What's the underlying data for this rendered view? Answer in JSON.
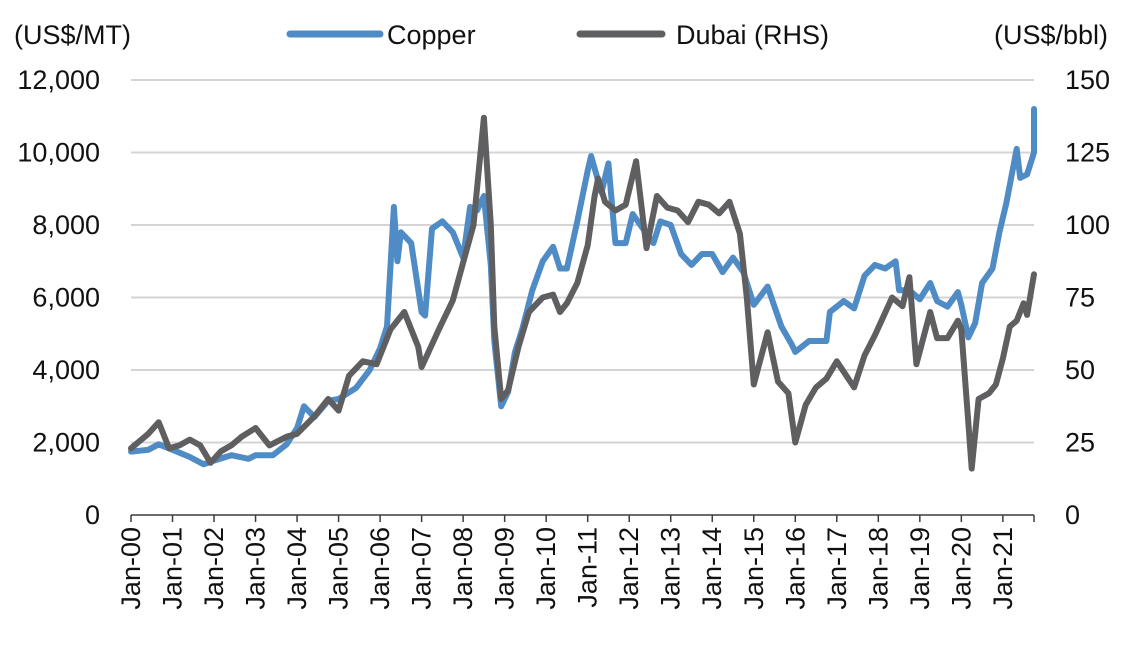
{
  "chart_data": {
    "type": "line",
    "title": "",
    "xlabel": "",
    "left_axis_unit": "(US$/MT)",
    "right_axis_unit": "(US$/bbl)",
    "left_ylim": [
      0,
      12000
    ],
    "right_ylim": [
      0,
      150
    ],
    "left_yticks": [
      "0",
      "2,000",
      "4,000",
      "6,000",
      "8,000",
      "10,000",
      "12,000"
    ],
    "right_yticks": [
      "0",
      "25",
      "50",
      "75",
      "100",
      "125",
      "150"
    ],
    "x_ticks": [
      "Jan-00",
      "Jan-01",
      "Jan-02",
      "Jan-03",
      "Jan-04",
      "Jan-05",
      "Jan-06",
      "Jan-07",
      "Jan-08",
      "Jan-09",
      "Jan-10",
      "Jan-11",
      "Jan-12",
      "Jan-13",
      "Jan-14",
      "Jan-15",
      "Jan-16",
      "Jan-17",
      "Jan-18",
      "Jan-19",
      "Jan-20",
      "Jan-21"
    ],
    "xlim": [
      "2000-01",
      "2021-10"
    ],
    "grid": "horizontal",
    "legend_position": "top-center",
    "series": [
      {
        "name": "Copper",
        "axis": "left",
        "color": "#4f8bc4",
        "points": [
          [
            "2000-01",
            1750
          ],
          [
            "2000-06",
            1800
          ],
          [
            "2000-09",
            1950
          ],
          [
            "2001-01",
            1800
          ],
          [
            "2001-06",
            1600
          ],
          [
            "2001-10",
            1400
          ],
          [
            "2002-01",
            1500
          ],
          [
            "2002-06",
            1650
          ],
          [
            "2002-11",
            1550
          ],
          [
            "2003-01",
            1650
          ],
          [
            "2003-06",
            1650
          ],
          [
            "2003-10",
            1950
          ],
          [
            "2004-01",
            2400
          ],
          [
            "2004-03",
            3000
          ],
          [
            "2004-06",
            2700
          ],
          [
            "2004-10",
            3150
          ],
          [
            "2005-01",
            3200
          ],
          [
            "2005-06",
            3500
          ],
          [
            "2005-10",
            4000
          ],
          [
            "2006-01",
            4600
          ],
          [
            "2006-03",
            5200
          ],
          [
            "2006-05",
            8500
          ],
          [
            "2006-06",
            7000
          ],
          [
            "2006-07",
            7800
          ],
          [
            "2006-10",
            7500
          ],
          [
            "2007-01",
            5600
          ],
          [
            "2007-02",
            5500
          ],
          [
            "2007-04",
            7900
          ],
          [
            "2007-07",
            8100
          ],
          [
            "2007-10",
            7800
          ],
          [
            "2008-01",
            7100
          ],
          [
            "2008-03",
            8500
          ],
          [
            "2008-05",
            8400
          ],
          [
            "2008-07",
            8800
          ],
          [
            "2008-09",
            6900
          ],
          [
            "2008-10",
            4800
          ],
          [
            "2008-12",
            3000
          ],
          [
            "2009-02",
            3400
          ],
          [
            "2009-04",
            4500
          ],
          [
            "2009-06",
            5100
          ],
          [
            "2009-09",
            6200
          ],
          [
            "2009-12",
            7000
          ],
          [
            "2010-03",
            7400
          ],
          [
            "2010-05",
            6800
          ],
          [
            "2010-07",
            6800
          ],
          [
            "2010-10",
            8100
          ],
          [
            "2011-01",
            9500
          ],
          [
            "2011-02",
            9900
          ],
          [
            "2011-05",
            8900
          ],
          [
            "2011-07",
            9700
          ],
          [
            "2011-09",
            7500
          ],
          [
            "2011-12",
            7500
          ],
          [
            "2012-02",
            8300
          ],
          [
            "2012-05",
            7900
          ],
          [
            "2012-08",
            7500
          ],
          [
            "2012-10",
            8100
          ],
          [
            "2013-01",
            8000
          ],
          [
            "2013-04",
            7200
          ],
          [
            "2013-07",
            6900
          ],
          [
            "2013-10",
            7200
          ],
          [
            "2014-01",
            7200
          ],
          [
            "2014-04",
            6700
          ],
          [
            "2014-07",
            7100
          ],
          [
            "2014-10",
            6700
          ],
          [
            "2015-01",
            5800
          ],
          [
            "2015-05",
            6300
          ],
          [
            "2015-09",
            5200
          ],
          [
            "2015-12",
            4700
          ],
          [
            "2016-01",
            4500
          ],
          [
            "2016-05",
            4800
          ],
          [
            "2016-10",
            4800
          ],
          [
            "2016-11",
            5600
          ],
          [
            "2017-03",
            5900
          ],
          [
            "2017-06",
            5700
          ],
          [
            "2017-09",
            6600
          ],
          [
            "2017-12",
            6900
          ],
          [
            "2018-03",
            6800
          ],
          [
            "2018-06",
            7000
          ],
          [
            "2018-07",
            6200
          ],
          [
            "2018-10",
            6200
          ],
          [
            "2019-01",
            5950
          ],
          [
            "2019-04",
            6400
          ],
          [
            "2019-06",
            5900
          ],
          [
            "2019-09",
            5750
          ],
          [
            "2019-12",
            6150
          ],
          [
            "2020-01",
            5800
          ],
          [
            "2020-03",
            4900
          ],
          [
            "2020-05",
            5300
          ],
          [
            "2020-07",
            6400
          ],
          [
            "2020-10",
            6800
          ],
          [
            "2020-12",
            7800
          ],
          [
            "2021-02",
            8600
          ],
          [
            "2021-05",
            10100
          ],
          [
            "2021-06",
            9300
          ],
          [
            "2021-08",
            9400
          ],
          [
            "2021-10",
            10000
          ],
          [
            "2021-10",
            11200
          ]
        ]
      },
      {
        "name": "Dubai (RHS)",
        "axis": "right",
        "color": "#5f5f61",
        "points": [
          [
            "2000-01",
            23
          ],
          [
            "2000-06",
            28
          ],
          [
            "2000-09",
            32
          ],
          [
            "2000-12",
            23
          ],
          [
            "2001-03",
            24
          ],
          [
            "2001-06",
            26
          ],
          [
            "2001-09",
            24
          ],
          [
            "2001-12",
            18
          ],
          [
            "2002-03",
            22
          ],
          [
            "2002-06",
            24
          ],
          [
            "2002-09",
            27
          ],
          [
            "2003-01",
            30
          ],
          [
            "2003-03",
            27
          ],
          [
            "2003-05",
            24
          ],
          [
            "2003-10",
            27
          ],
          [
            "2004-01",
            28
          ],
          [
            "2004-06",
            34
          ],
          [
            "2004-10",
            40
          ],
          [
            "2005-01",
            36
          ],
          [
            "2005-04",
            48
          ],
          [
            "2005-08",
            53
          ],
          [
            "2005-12",
            52
          ],
          [
            "2006-04",
            64
          ],
          [
            "2006-08",
            70
          ],
          [
            "2006-12",
            58
          ],
          [
            "2007-01",
            51
          ],
          [
            "2007-06",
            64
          ],
          [
            "2007-10",
            74
          ],
          [
            "2008-01",
            87
          ],
          [
            "2008-04",
            100
          ],
          [
            "2008-07",
            137
          ],
          [
            "2008-09",
            100
          ],
          [
            "2008-10",
            65
          ],
          [
            "2008-12",
            40
          ],
          [
            "2009-02",
            43
          ],
          [
            "2009-05",
            58
          ],
          [
            "2009-08",
            70
          ],
          [
            "2009-12",
            75
          ],
          [
            "2010-03",
            76
          ],
          [
            "2010-05",
            70
          ],
          [
            "2010-07",
            73
          ],
          [
            "2010-10",
            80
          ],
          [
            "2011-01",
            93
          ],
          [
            "2011-03",
            110
          ],
          [
            "2011-04",
            116
          ],
          [
            "2011-06",
            108
          ],
          [
            "2011-09",
            105
          ],
          [
            "2011-12",
            107
          ],
          [
            "2012-03",
            122
          ],
          [
            "2012-06",
            92
          ],
          [
            "2012-09",
            110
          ],
          [
            "2012-12",
            106
          ],
          [
            "2013-03",
            105
          ],
          [
            "2013-06",
            101
          ],
          [
            "2013-09",
            108
          ],
          [
            "2013-12",
            107
          ],
          [
            "2014-03",
            104
          ],
          [
            "2014-06",
            108
          ],
          [
            "2014-09",
            97
          ],
          [
            "2014-11",
            75
          ],
          [
            "2015-01",
            45
          ],
          [
            "2015-05",
            63
          ],
          [
            "2015-08",
            46
          ],
          [
            "2015-11",
            42
          ],
          [
            "2016-01",
            25
          ],
          [
            "2016-04",
            38
          ],
          [
            "2016-07",
            44
          ],
          [
            "2016-10",
            47
          ],
          [
            "2017-01",
            53
          ],
          [
            "2017-06",
            44
          ],
          [
            "2017-09",
            55
          ],
          [
            "2017-12",
            62
          ],
          [
            "2018-05",
            75
          ],
          [
            "2018-08",
            72
          ],
          [
            "2018-10",
            82
          ],
          [
            "2018-12",
            52
          ],
          [
            "2019-04",
            70
          ],
          [
            "2019-06",
            61
          ],
          [
            "2019-09",
            61
          ],
          [
            "2019-12",
            67
          ],
          [
            "2020-01",
            64
          ],
          [
            "2020-03",
            32
          ],
          [
            "2020-04",
            16
          ],
          [
            "2020-06",
            40
          ],
          [
            "2020-09",
            42
          ],
          [
            "2020-11",
            45
          ],
          [
            "2021-01",
            54
          ],
          [
            "2021-03",
            65
          ],
          [
            "2021-05",
            67
          ],
          [
            "2021-07",
            73
          ],
          [
            "2021-08",
            69
          ],
          [
            "2021-10",
            83
          ]
        ]
      }
    ]
  }
}
